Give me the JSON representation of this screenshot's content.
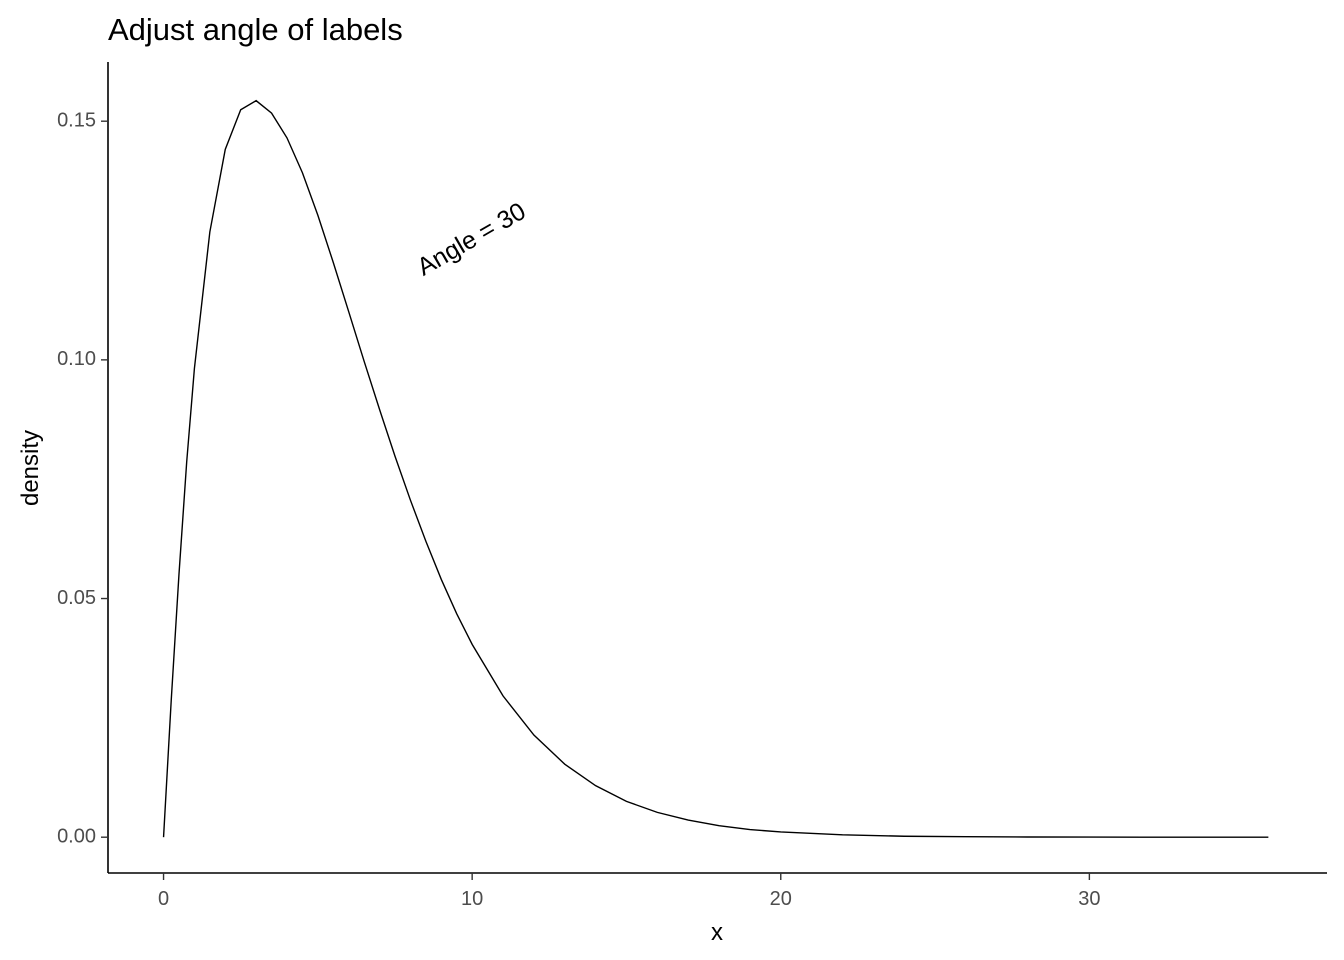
{
  "chart_data": {
    "type": "line",
    "title": "Adjust angle of labels",
    "xlabel": "x",
    "ylabel": "density",
    "xlim": [
      -1.8,
      37.7
    ],
    "ylim": [
      -0.0075,
      0.1624
    ],
    "x_ticks": [
      0,
      10,
      20,
      30
    ],
    "x_tick_labels": [
      "0",
      "10",
      "20",
      "30"
    ],
    "y_ticks": [
      0.0,
      0.05,
      0.1,
      0.15
    ],
    "y_tick_labels": [
      "0.00",
      "0.05",
      "0.10",
      "0.15"
    ],
    "grid": false,
    "legend": "none",
    "line_color": "#000000",
    "series": [
      {
        "x": [
          0,
          0.25,
          0.5,
          0.75,
          1,
          1.5,
          2,
          2.5,
          3,
          3.5,
          4,
          4.5,
          5,
          5.5,
          6,
          6.5,
          7,
          7.5,
          8,
          8.5,
          9,
          9.5,
          10,
          11,
          12,
          13,
          14,
          15,
          16,
          17,
          18,
          19,
          20,
          22,
          24,
          26,
          28,
          30,
          32,
          34,
          35.8
        ],
        "y": [
          0,
          0.0288,
          0.0551,
          0.0786,
          0.0982,
          0.1268,
          0.1441,
          0.1524,
          0.1543,
          0.1517,
          0.1465,
          0.1392,
          0.1303,
          0.1204,
          0.1101,
          0.0997,
          0.0896,
          0.0798,
          0.0706,
          0.062,
          0.054,
          0.0468,
          0.0404,
          0.0296,
          0.0214,
          0.0153,
          0.0108,
          0.0075,
          0.0052,
          0.0036,
          0.0024,
          0.0016,
          0.0011,
          0.0005,
          0.0002,
          0.0001,
          4e-05,
          2e-05,
          1e-05,
          0,
          0
        ]
      }
    ],
    "annotation": {
      "text": "Angle = 30",
      "x": 10,
      "y": 0.125,
      "angle": 30
    }
  }
}
